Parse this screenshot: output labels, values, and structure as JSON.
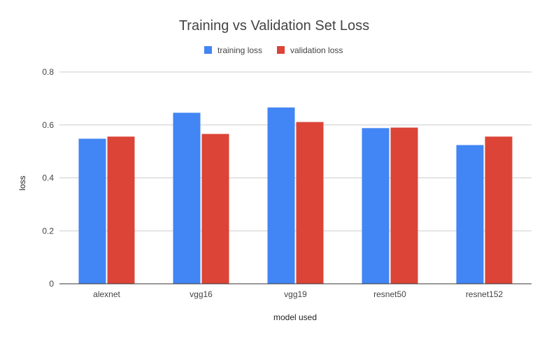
{
  "chart_data": {
    "type": "bar",
    "title": "Training vs Validation Set Loss",
    "xlabel": "model used",
    "ylabel": "loss",
    "categories": [
      "alexnet",
      "vgg16",
      "vgg19",
      "resnet50",
      "resnet152"
    ],
    "series": [
      {
        "name": "training loss",
        "color": "#4285F4",
        "values": [
          0.548,
          0.646,
          0.666,
          0.588,
          0.524
        ]
      },
      {
        "name": "validation loss",
        "color": "#DB4437",
        "values": [
          0.556,
          0.566,
          0.611,
          0.59,
          0.556
        ]
      }
    ],
    "ylim": [
      0,
      0.8
    ],
    "yticks": [
      "0",
      "0.2",
      "0.4",
      "0.6",
      "0.8"
    ],
    "grid": true,
    "legend_position": "top-center"
  }
}
